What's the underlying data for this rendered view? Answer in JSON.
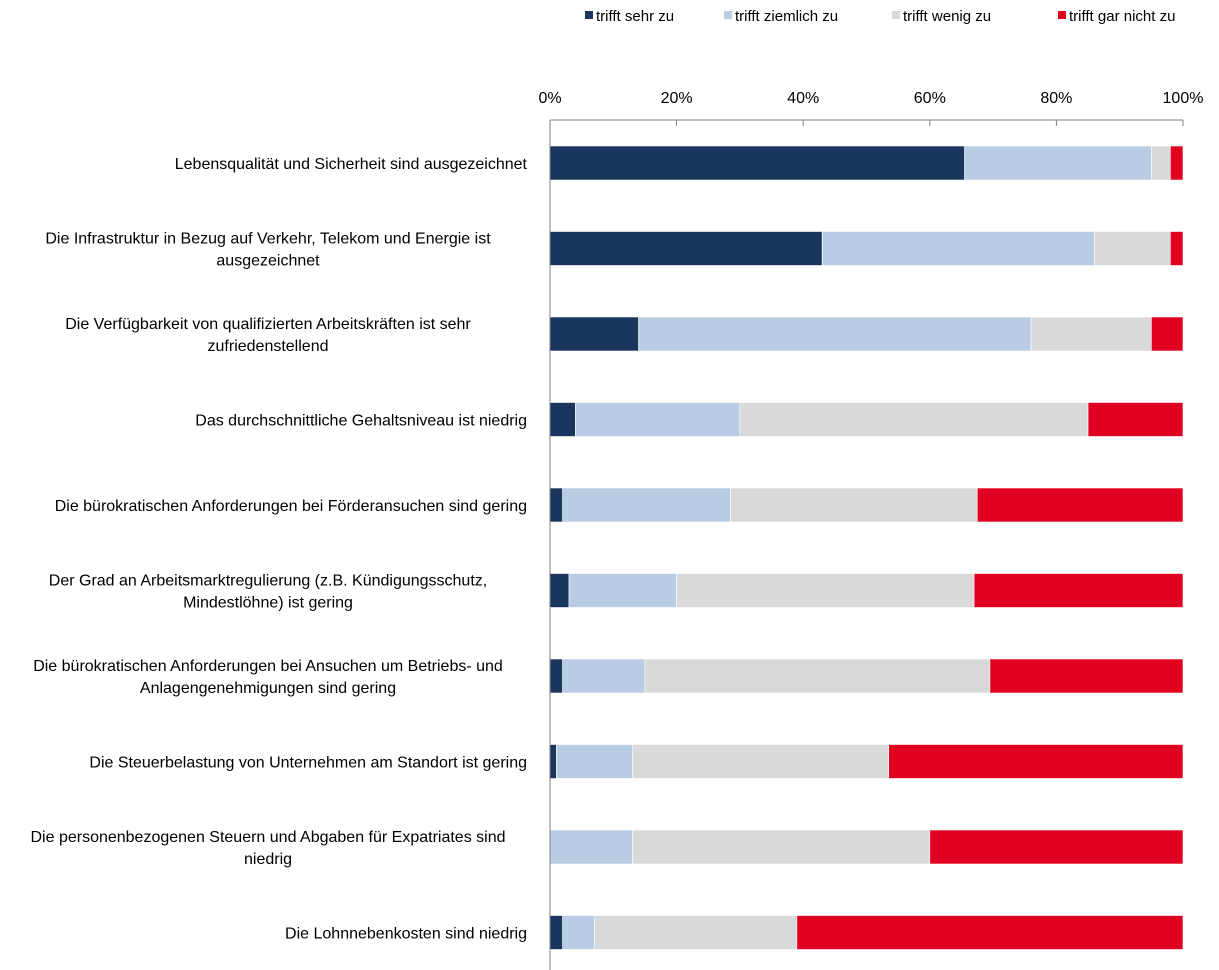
{
  "chart_data": {
    "type": "bar",
    "orientation": "horizontal",
    "stacked": true,
    "percent_stacked": true,
    "legend_position": "top-right",
    "grid": false,
    "xlim": [
      0,
      100
    ],
    "x_ticks": [
      "0%",
      "20%",
      "40%",
      "60%",
      "80%",
      "100%"
    ],
    "categories": [
      [
        "Lebensqualität und Sicherheit sind ausgezeichnet"
      ],
      [
        "Die Infrastruktur in Bezug auf Verkehr, Telekom und Energie ist",
        "ausgezeichnet"
      ],
      [
        "Die Verfügbarkeit von qualifizierten Arbeitskräften ist sehr",
        "zufriedenstellend"
      ],
      [
        "Das durchschnittliche Gehaltsniveau ist niedrig"
      ],
      [
        "Die bürokratischen Anforderungen bei Förderansuchen sind gering"
      ],
      [
        "Der Grad an Arbeitsmarktregulierung (z.B. Kündigungsschutz,",
        "Mindestlöhne) ist gering"
      ],
      [
        "Die bürokratischen Anforderungen bei Ansuchen um Betriebs- und",
        "Anlagengenehmigungen sind gering"
      ],
      [
        "Die Steuerbelastung von Unternehmen am Standort ist gering"
      ],
      [
        "Die personenbezogenen Steuern und Abgaben für Expatriates sind",
        "niedrig"
      ],
      [
        "Die Lohnnebenkosten sind niedrig"
      ]
    ],
    "series": [
      {
        "name": "trifft sehr zu",
        "color": "#1b365d",
        "values": [
          65.5,
          43,
          14,
          4,
          2,
          3,
          2,
          1,
          0,
          2
        ]
      },
      {
        "name": "trifft ziemlich zu",
        "color": "#b8cce4",
        "values": [
          29.5,
          43,
          62,
          26,
          26.5,
          17,
          13,
          12,
          13,
          5
        ]
      },
      {
        "name": "trifft wenig zu",
        "color": "#d9d9d9",
        "values": [
          3,
          12,
          19,
          55,
          39,
          47,
          54.5,
          40.5,
          47,
          32
        ]
      },
      {
        "name": "trifft gar nicht zu",
        "color": "#e0001f",
        "values": [
          2,
          2,
          5,
          15,
          32.5,
          33,
          30.5,
          46.5,
          40,
          61
        ]
      }
    ]
  }
}
